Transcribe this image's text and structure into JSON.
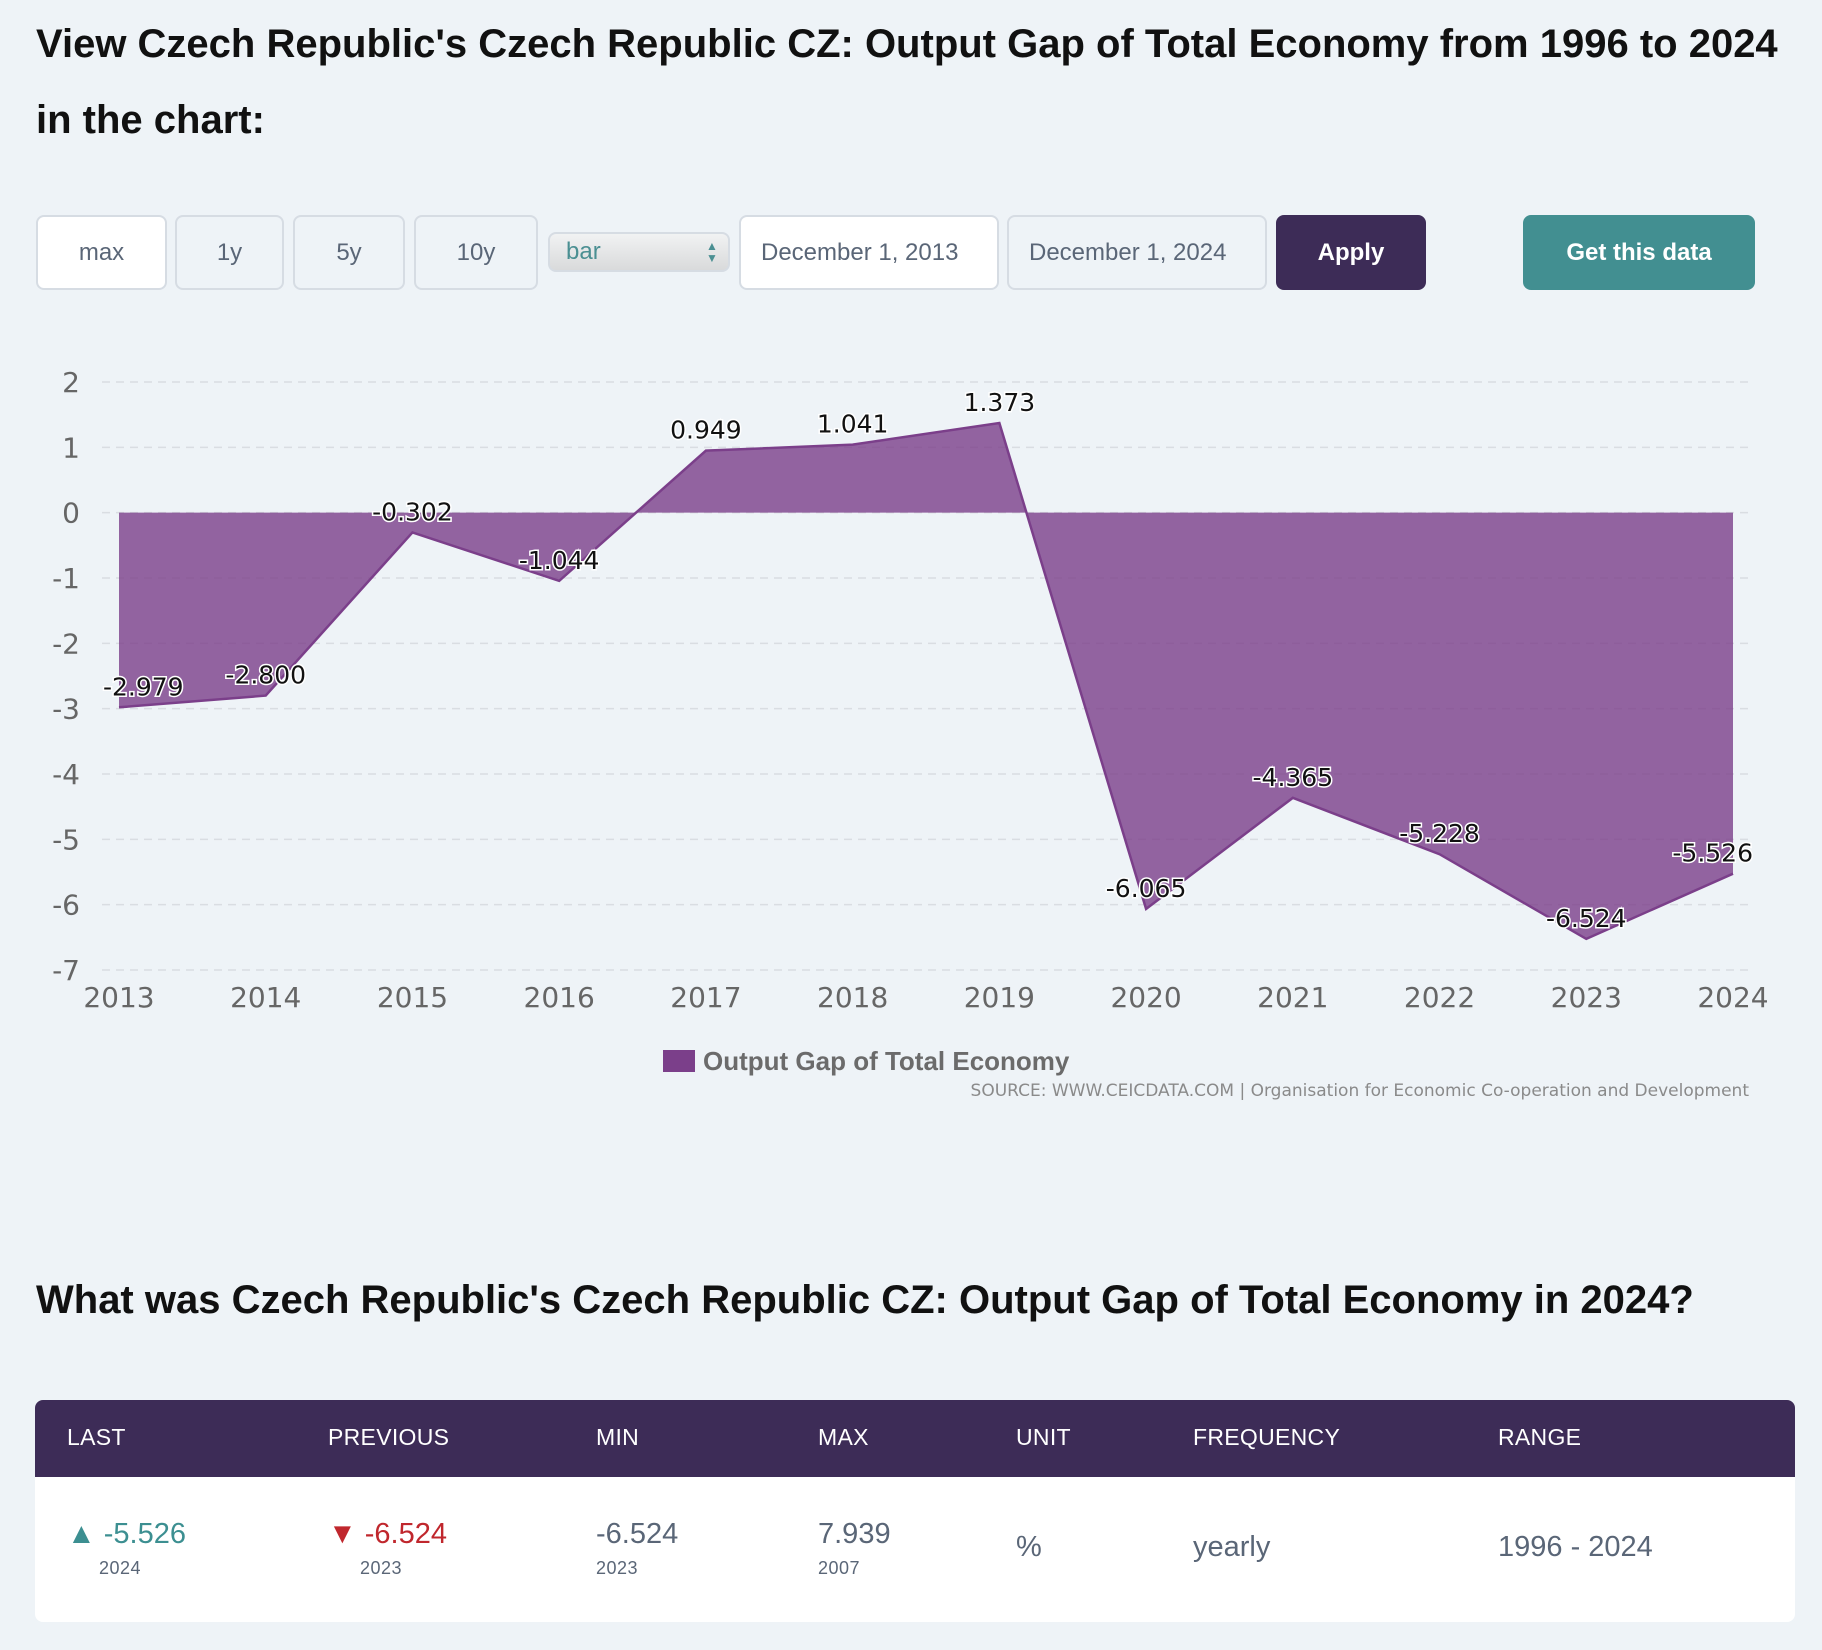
{
  "page": {
    "heading": "View Czech Republic's Czech Republic CZ: Output Gap of Total Economy from 1996 to 2024 in the chart:",
    "question": "What was Czech Republic's Czech Republic CZ: Output Gap of Total Economy in 2024?"
  },
  "controls": {
    "range_buttons": [
      "max",
      "1y",
      "5y",
      "10y"
    ],
    "chart_type_selected": "bar",
    "start_date": "December 1, 2013",
    "end_date": "December 1, 2024",
    "apply_label": "Apply",
    "get_data_label": "Get this data"
  },
  "chart_data": {
    "type": "area",
    "x": [
      "2013",
      "2014",
      "2015",
      "2016",
      "2017",
      "2018",
      "2019",
      "2020",
      "2021",
      "2022",
      "2023",
      "2024"
    ],
    "series": [
      {
        "name": "Output Gap of Total Economy",
        "values": [
          -2.979,
          -2.8,
          -0.302,
          -1.044,
          0.949,
          1.041,
          1.373,
          -6.065,
          -4.365,
          -5.228,
          -6.524,
          -5.526
        ],
        "labels": [
          "-2.979",
          "-2.800",
          "-0.302",
          "-1.044",
          "0.949",
          "1.041",
          "1.373",
          "-6.065",
          "-4.365",
          "-5.228",
          "-6.524",
          "-5.526"
        ],
        "color": "#7b3f8a"
      }
    ],
    "yticks": [
      "2",
      "1",
      "0",
      "-1",
      "-2",
      "-3",
      "-4",
      "-5",
      "-6",
      "-7"
    ],
    "ylim": [
      -7,
      2
    ],
    "grid": true,
    "legend_position": "bottom-center",
    "source": "SOURCE: WWW.CEICDATA.COM | Organisation for Economic Co-operation and Development"
  },
  "stats": {
    "headers": [
      "LAST",
      "PREVIOUS",
      "MIN",
      "MAX",
      "UNIT",
      "FREQUENCY",
      "RANGE"
    ],
    "last": {
      "arrow": "▲",
      "value": "-5.526",
      "year": "2024"
    },
    "previous": {
      "arrow": "▼",
      "value": "-6.524",
      "year": "2023"
    },
    "min": {
      "value": "-6.524",
      "year": "2023"
    },
    "max": {
      "value": "7.939",
      "year": "2007"
    },
    "unit": "%",
    "frequency": "yearly",
    "range": "1996 - 2024",
    "colors": {
      "up": "#3c8f91",
      "down": "#c0272d"
    }
  }
}
